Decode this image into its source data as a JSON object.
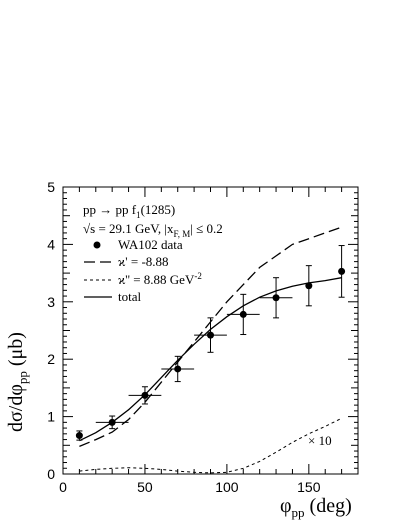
{
  "chart_data": {
    "type": "line",
    "xlabel": {
      "main": "φ",
      "sub": "pp",
      "unit": " (deg)"
    },
    "ylabel": {
      "main": "dσ/dφ",
      "sub": "pp",
      "unit": "  (μb)"
    },
    "xlim": [
      0,
      180
    ],
    "ylim": [
      0,
      5
    ],
    "x_ticks": [
      0,
      50,
      100,
      150
    ],
    "y_ticks": [
      0,
      1,
      2,
      3,
      4,
      5
    ],
    "legend_position": "top-left",
    "annotations": {
      "reaction": {
        "pre": "pp → pp f",
        "sub": "1",
        "post": "(1285)"
      },
      "energy": {
        "sqrt": "√",
        "s": "s = 29.1 GeV,  |x",
        "sub": "F, M",
        "post": "| ≤ 0.2"
      },
      "scale": "× 10"
    },
    "legend": {
      "data": "WA102 data",
      "kappa_prime": "ϰ' = -8.88",
      "kappa_dprime": "ϰ'' = 8.88 GeV",
      "kappa_dprime_exp": "-2",
      "total": "total"
    },
    "data_points": {
      "name": "WA102 data",
      "x": [
        10,
        30,
        50,
        70,
        90,
        110,
        130,
        150,
        170
      ],
      "y": [
        0.67,
        0.9,
        1.37,
        1.83,
        2.42,
        2.78,
        3.07,
        3.28,
        3.53
      ],
      "xerr": [
        0,
        10,
        10,
        10,
        10,
        10,
        10,
        0,
        0
      ],
      "yerr": [
        0.08,
        0.11,
        0.15,
        0.22,
        0.3,
        0.35,
        0.35,
        0.35,
        0.45
      ]
    },
    "series": [
      {
        "name": "total",
        "style": "solid",
        "x": [
          10,
          20,
          30,
          40,
          50,
          60,
          70,
          80,
          90,
          100,
          110,
          120,
          130,
          140,
          150,
          160,
          170
        ],
        "y": [
          0.58,
          0.72,
          0.9,
          1.12,
          1.38,
          1.68,
          1.98,
          2.26,
          2.52,
          2.74,
          2.93,
          3.08,
          3.19,
          3.27,
          3.33,
          3.37,
          3.42
        ]
      },
      {
        "name": "ϰ' = -8.88",
        "style": "long-dash",
        "x": [
          10,
          20,
          30,
          40,
          50,
          60,
          70,
          80,
          90,
          100,
          110,
          120,
          130,
          140,
          150,
          160,
          170
        ],
        "y": [
          0.48,
          0.6,
          0.73,
          0.95,
          1.25,
          1.6,
          1.95,
          2.3,
          2.65,
          3.0,
          3.3,
          3.6,
          3.8,
          4.0,
          4.1,
          4.2,
          4.3
        ]
      },
      {
        "name": "ϰ'' = 8.88 GeV-2 (× 10)",
        "style": "short-dash",
        "x": [
          10,
          20,
          30,
          40,
          50,
          60,
          70,
          80,
          90,
          100,
          110,
          120,
          130,
          140,
          150,
          160,
          170
        ],
        "y": [
          0.05,
          0.08,
          0.1,
          0.11,
          0.1,
          0.08,
          0.05,
          0.03,
          0.02,
          0.03,
          0.1,
          0.22,
          0.38,
          0.55,
          0.7,
          0.83,
          0.97
        ]
      }
    ]
  }
}
